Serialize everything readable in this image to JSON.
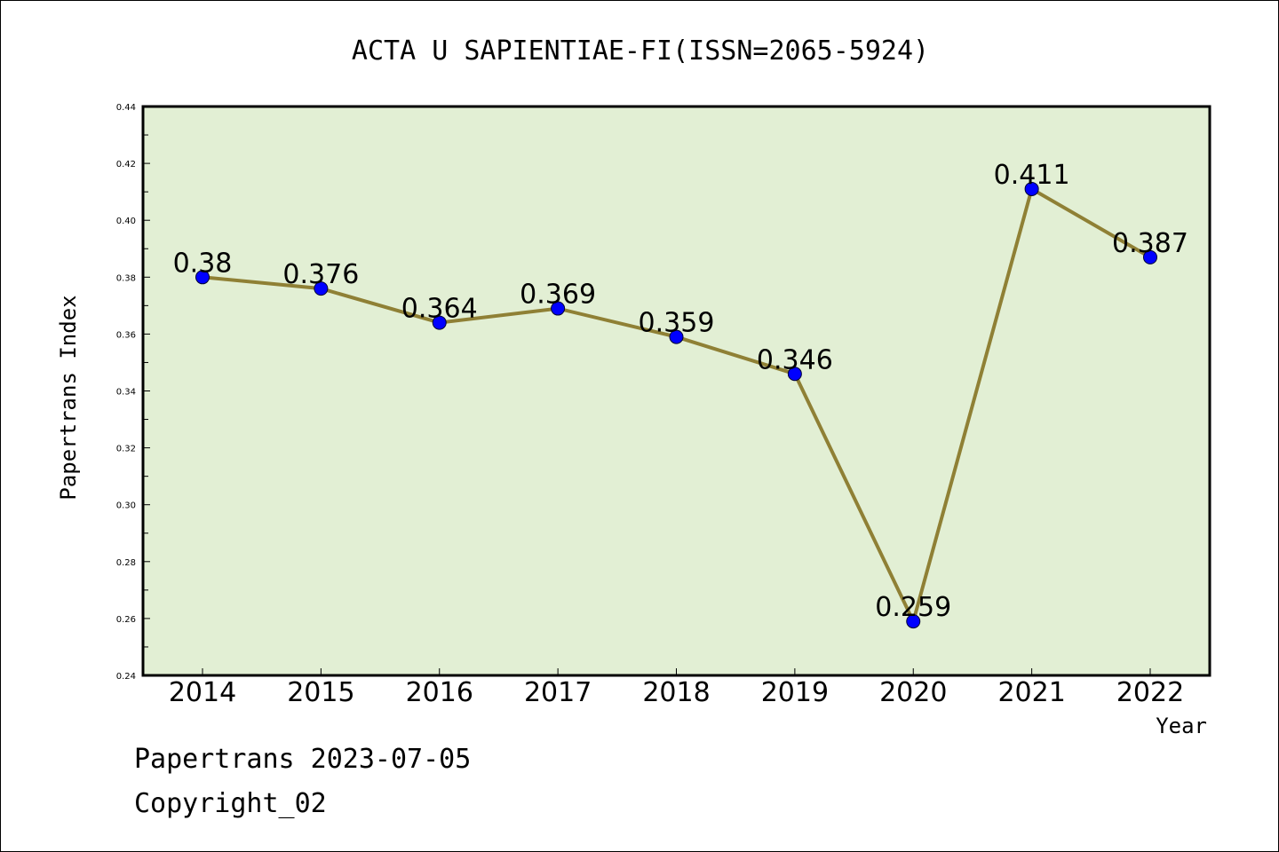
{
  "chart_data": {
    "type": "line",
    "title": "ACTA U SAPIENTIAE-FI(ISSN=2065-5924)",
    "xlabel": "Year",
    "ylabel": "Papertrans Index",
    "categories": [
      "2014",
      "2015",
      "2016",
      "2017",
      "2018",
      "2019",
      "2020",
      "2021",
      "2022"
    ],
    "values": [
      0.38,
      0.376,
      0.364,
      0.369,
      0.359,
      0.346,
      0.259,
      0.411,
      0.387
    ],
    "data_labels": [
      "0.38",
      "0.376",
      "0.364",
      "0.369",
      "0.359",
      "0.346",
      "0.259",
      "0.411",
      "0.387"
    ],
    "ylim": [
      0.24,
      0.44
    ],
    "y_ticks": [
      "0.24",
      "0.26",
      "0.28",
      "0.30",
      "0.32",
      "0.34",
      "0.36",
      "0.38",
      "0.40",
      "0.42",
      "0.44"
    ],
    "grid": false,
    "colors": {
      "plot_background": "#e2efd4",
      "line": "#8f8035",
      "marker": "#0000ff"
    }
  },
  "footer": {
    "date_line": "Papertrans 2023-07-05",
    "copyright_line": "Copyright_02"
  }
}
